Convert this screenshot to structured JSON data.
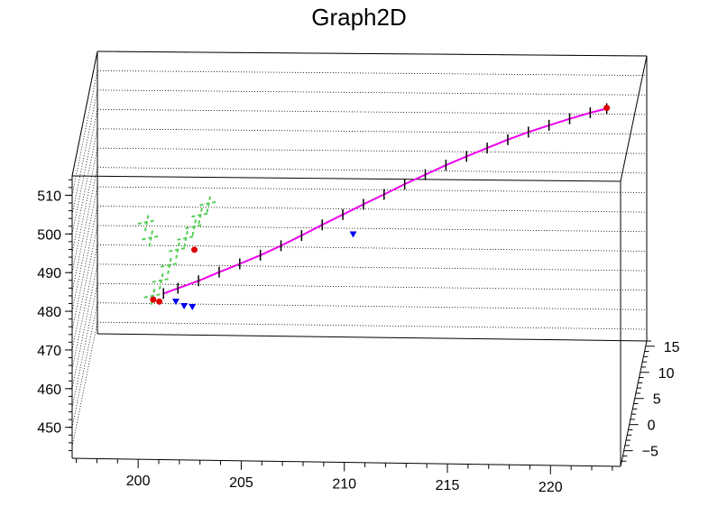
{
  "chart_data": {
    "type": "scatter3d",
    "title": "Graph2D",
    "axes": {
      "x": {
        "range": [
          196.8,
          223.4
        ],
        "ticks": [
          200,
          205,
          210,
          215,
          220
        ],
        "tick_labels": [
          "200",
          "205",
          "210",
          "215",
          "220"
        ]
      },
      "y": {
        "range": [
          -8,
          16
        ],
        "ticks": [
          -5,
          0,
          5,
          10,
          15
        ],
        "tick_labels": [
          "−5",
          "0",
          "5",
          "10",
          "15"
        ]
      },
      "z": {
        "range": [
          442,
          515
        ],
        "ticks": [
          450,
          460,
          470,
          480,
          490,
          500,
          510
        ],
        "tick_labels": [
          "450",
          "460",
          "470",
          "480",
          "490",
          "500",
          "510"
        ]
      }
    },
    "grid": true,
    "colors": {
      "line": "#ee00ee",
      "cross_marker": "#000000",
      "endpoint_marker": "#dd0000",
      "triangle_marker": "#0000ee",
      "error_bars": "#55cc55"
    },
    "series": [
      {
        "marker": "cross",
        "points": [
          [
            200.8,
            473.6
          ],
          [
            201.5,
            475
          ],
          [
            202.5,
            477
          ],
          [
            203.5,
            479.3
          ],
          [
            204.5,
            481.5
          ],
          [
            205.5,
            483.8
          ],
          [
            206.5,
            486.3
          ],
          [
            207.5,
            489
          ],
          [
            208.5,
            491.8
          ],
          [
            209.5,
            494.5
          ],
          [
            210.5,
            497.2
          ],
          [
            211.5,
            499.8
          ],
          [
            212.5,
            502.5
          ],
          [
            213.5,
            505
          ],
          [
            214.5,
            507.5
          ],
          [
            215.5,
            509.8
          ],
          [
            216.5,
            512
          ],
          [
            217.5,
            514.2
          ],
          [
            218.5,
            516.2
          ],
          [
            219.5,
            518
          ],
          [
            220.5,
            519.7
          ],
          [
            221.5,
            521.3
          ],
          [
            222.3,
            522.4
          ]
        ]
      },
      {
        "marker": "circle-red",
        "points": [
          [
            200.3,
            472
          ],
          [
            200.6,
            471.5
          ],
          [
            202.3,
            485
          ],
          [
            222.3,
            522.6
          ]
        ]
      },
      {
        "marker": "triangle-down",
        "points": [
          [
            201.4,
            471.6
          ],
          [
            201.8,
            470.5
          ],
          [
            202.2,
            470.3
          ],
          [
            210,
            489.5
          ]
        ]
      },
      {
        "marker": "error-bars-green",
        "points": [
          [
            200.3,
            473
          ],
          [
            200.7,
            477
          ],
          [
            201.1,
            481
          ],
          [
            201.5,
            485
          ],
          [
            201.9,
            488
          ],
          [
            202.3,
            491
          ],
          [
            202.6,
            494
          ],
          [
            203,
            497
          ],
          [
            200,
            492
          ],
          [
            200.2,
            488
          ]
        ]
      }
    ]
  }
}
